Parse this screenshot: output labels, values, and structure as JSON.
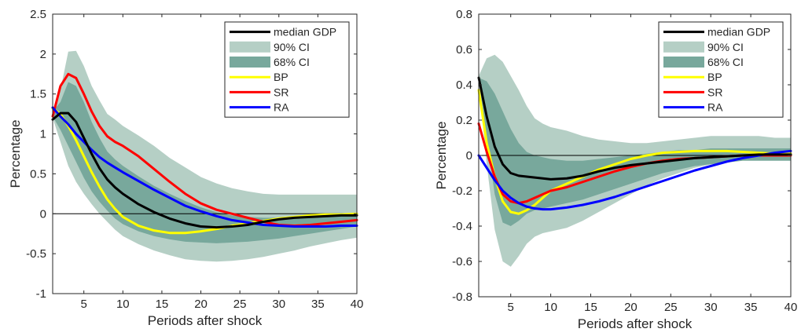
{
  "chart_data": [
    {
      "type": "line",
      "xlabel": "Periods after shock",
      "ylabel": "Percentage",
      "xlim": [
        1,
        40
      ],
      "ylim": [
        -1,
        2.5
      ],
      "xticks": [
        5,
        10,
        15,
        20,
        25,
        30,
        35,
        40
      ],
      "yticks": [
        -1,
        -0.5,
        0,
        0.5,
        1,
        1.5,
        2,
        2.5
      ],
      "ytick_labels": [
        "-1",
        "-0.5",
        "0",
        "0.5",
        "1",
        "1.5",
        "2",
        "2.5"
      ],
      "legend_position": "top-right",
      "zero_line": true,
      "legend": [
        "median GDP",
        "90% CI",
        "68% CI",
        "BP",
        "SR",
        "RA"
      ],
      "x": [
        1,
        2,
        3,
        4,
        5,
        6,
        7,
        8,
        9,
        10,
        12,
        14,
        16,
        18,
        20,
        22,
        24,
        26,
        28,
        30,
        32,
        34,
        36,
        38,
        40
      ],
      "ci90": {
        "name": "90% CI",
        "color": "#b5cfc5",
        "upper": [
          1.3,
          1.55,
          2.03,
          2.04,
          1.85,
          1.6,
          1.42,
          1.25,
          1.18,
          1.1,
          0.98,
          0.85,
          0.7,
          0.58,
          0.46,
          0.38,
          0.32,
          0.28,
          0.25,
          0.24,
          0.24,
          0.24,
          0.24,
          0.24,
          0.24
        ],
        "lower": [
          1.2,
          0.9,
          0.6,
          0.4,
          0.25,
          0.12,
          0.0,
          -0.1,
          -0.2,
          -0.28,
          -0.38,
          -0.46,
          -0.52,
          -0.57,
          -0.59,
          -0.6,
          -0.59,
          -0.57,
          -0.54,
          -0.5,
          -0.46,
          -0.41,
          -0.37,
          -0.33,
          -0.3
        ]
      },
      "ci68": {
        "name": "68% CI",
        "color": "#78a89c",
        "upper": [
          1.28,
          1.4,
          1.65,
          1.6,
          1.4,
          1.15,
          0.95,
          0.78,
          0.68,
          0.6,
          0.47,
          0.35,
          0.25,
          0.16,
          0.08,
          0.02,
          -0.02,
          -0.04,
          -0.05,
          -0.05,
          -0.05,
          -0.04,
          -0.03,
          -0.02,
          -0.01
        ],
        "lower": [
          1.22,
          1.05,
          0.85,
          0.65,
          0.45,
          0.28,
          0.15,
          0.04,
          -0.06,
          -0.13,
          -0.22,
          -0.28,
          -0.32,
          -0.35,
          -0.36,
          -0.37,
          -0.36,
          -0.35,
          -0.33,
          -0.31,
          -0.28,
          -0.25,
          -0.22,
          -0.19,
          -0.16
        ]
      },
      "series": [
        {
          "name": "median GDP",
          "color": "#000000",
          "values": [
            1.18,
            1.26,
            1.26,
            1.15,
            0.95,
            0.75,
            0.57,
            0.43,
            0.33,
            0.25,
            0.12,
            0.02,
            -0.06,
            -0.12,
            -0.16,
            -0.17,
            -0.16,
            -0.14,
            -0.1,
            -0.07,
            -0.05,
            -0.04,
            -0.03,
            -0.02,
            -0.02
          ]
        },
        {
          "name": "BP",
          "color": "#ffff00",
          "values": [
            1.32,
            1.25,
            1.1,
            0.92,
            0.72,
            0.52,
            0.34,
            0.18,
            0.06,
            -0.04,
            -0.15,
            -0.21,
            -0.24,
            -0.24,
            -0.22,
            -0.19,
            -0.15,
            -0.12,
            -0.09,
            -0.06,
            -0.04,
            -0.02,
            -0.01,
            -0.01,
            0.0
          ]
        },
        {
          "name": "SR",
          "color": "#ff0000",
          "values": [
            1.22,
            1.6,
            1.75,
            1.7,
            1.5,
            1.28,
            1.1,
            0.97,
            0.9,
            0.85,
            0.72,
            0.56,
            0.4,
            0.25,
            0.13,
            0.05,
            0.0,
            -0.05,
            -0.1,
            -0.14,
            -0.15,
            -0.14,
            -0.12,
            -0.1,
            -0.08
          ]
        },
        {
          "name": "RA",
          "color": "#0000ff",
          "values": [
            1.33,
            1.22,
            1.12,
            1.0,
            0.9,
            0.8,
            0.71,
            0.64,
            0.58,
            0.52,
            0.41,
            0.3,
            0.2,
            0.1,
            0.03,
            -0.03,
            -0.08,
            -0.11,
            -0.14,
            -0.15,
            -0.16,
            -0.16,
            -0.16,
            -0.15,
            -0.15
          ]
        }
      ]
    },
    {
      "type": "line",
      "xlabel": "Periods after shock",
      "ylabel": "Percentage",
      "xlim": [
        1,
        40
      ],
      "ylim": [
        -0.8,
        0.8
      ],
      "xticks": [
        5,
        10,
        15,
        20,
        25,
        30,
        35,
        40
      ],
      "yticks": [
        -0.8,
        -0.6,
        -0.4,
        -0.2,
        0,
        0.2,
        0.4,
        0.6,
        0.8
      ],
      "ytick_labels": [
        "-0.8",
        "-0.6",
        "-0.4",
        "-0.2",
        "0",
        "0.2",
        "0.4",
        "0.6",
        "0.8"
      ],
      "legend_position": "top-right",
      "zero_line": true,
      "legend": [
        "median GDP",
        "90% CI",
        "68% CI",
        "BP",
        "SR",
        "RA"
      ],
      "x": [
        1,
        2,
        3,
        4,
        5,
        6,
        7,
        8,
        9,
        10,
        12,
        14,
        16,
        18,
        20,
        22,
        24,
        26,
        28,
        30,
        32,
        34,
        36,
        38,
        40
      ],
      "ci90": {
        "name": "90% CI",
        "color": "#b5cfc5",
        "upper": [
          0.45,
          0.55,
          0.57,
          0.53,
          0.45,
          0.37,
          0.28,
          0.21,
          0.18,
          0.16,
          0.14,
          0.11,
          0.09,
          0.08,
          0.07,
          0.07,
          0.08,
          0.09,
          0.1,
          0.11,
          0.11,
          0.11,
          0.11,
          0.1,
          0.1
        ],
        "lower": [
          0.42,
          -0.05,
          -0.42,
          -0.6,
          -0.63,
          -0.57,
          -0.5,
          -0.46,
          -0.44,
          -0.43,
          -0.41,
          -0.37,
          -0.32,
          -0.27,
          -0.22,
          -0.17,
          -0.13,
          -0.1,
          -0.07,
          -0.05,
          -0.03,
          -0.02,
          -0.01,
          -0.01,
          -0.01
        ]
      },
      "ci68": {
        "name": "68% CI",
        "color": "#78a89c",
        "upper": [
          0.44,
          0.42,
          0.35,
          0.25,
          0.15,
          0.07,
          0.02,
          0.0,
          -0.01,
          -0.02,
          -0.03,
          -0.03,
          -0.02,
          -0.01,
          0.0,
          0.01,
          0.02,
          0.03,
          0.03,
          0.04,
          0.04,
          0.04,
          0.04,
          0.04,
          0.04
        ],
        "lower": [
          0.43,
          0.1,
          -0.22,
          -0.38,
          -0.4,
          -0.37,
          -0.33,
          -0.31,
          -0.3,
          -0.29,
          -0.27,
          -0.25,
          -0.22,
          -0.19,
          -0.16,
          -0.13,
          -0.1,
          -0.08,
          -0.06,
          -0.05,
          -0.04,
          -0.03,
          -0.03,
          -0.03,
          -0.03
        ]
      },
      "series": [
        {
          "name": "median GDP",
          "color": "#000000",
          "values": [
            0.44,
            0.22,
            0.05,
            -0.05,
            -0.1,
            -0.115,
            -0.12,
            -0.125,
            -0.13,
            -0.135,
            -0.13,
            -0.115,
            -0.09,
            -0.07,
            -0.055,
            -0.045,
            -0.035,
            -0.025,
            -0.015,
            -0.01,
            -0.005,
            0.0,
            0.005,
            0.005,
            0.005
          ]
        },
        {
          "name": "BP",
          "color": "#ffff00",
          "values": [
            0.37,
            0.07,
            -0.12,
            -0.26,
            -0.32,
            -0.33,
            -0.31,
            -0.28,
            -0.24,
            -0.2,
            -0.16,
            -0.12,
            -0.08,
            -0.05,
            -0.02,
            0.0,
            0.015,
            0.02,
            0.025,
            0.025,
            0.025,
            0.02,
            0.015,
            0.01,
            0.01
          ]
        },
        {
          "name": "SR",
          "color": "#ff0000",
          "values": [
            0.18,
            0.02,
            -0.12,
            -0.22,
            -0.26,
            -0.27,
            -0.26,
            -0.24,
            -0.22,
            -0.2,
            -0.18,
            -0.15,
            -0.12,
            -0.09,
            -0.065,
            -0.045,
            -0.03,
            -0.02,
            -0.015,
            -0.01,
            -0.005,
            0.0,
            0.0,
            0.0,
            0.0
          ]
        },
        {
          "name": "RA",
          "color": "#0000ff",
          "values": [
            0.0,
            -0.07,
            -0.14,
            -0.2,
            -0.24,
            -0.27,
            -0.29,
            -0.3,
            -0.305,
            -0.305,
            -0.295,
            -0.28,
            -0.26,
            -0.235,
            -0.205,
            -0.175,
            -0.145,
            -0.115,
            -0.085,
            -0.06,
            -0.035,
            -0.015,
            0.0,
            0.015,
            0.025
          ]
        }
      ]
    }
  ]
}
